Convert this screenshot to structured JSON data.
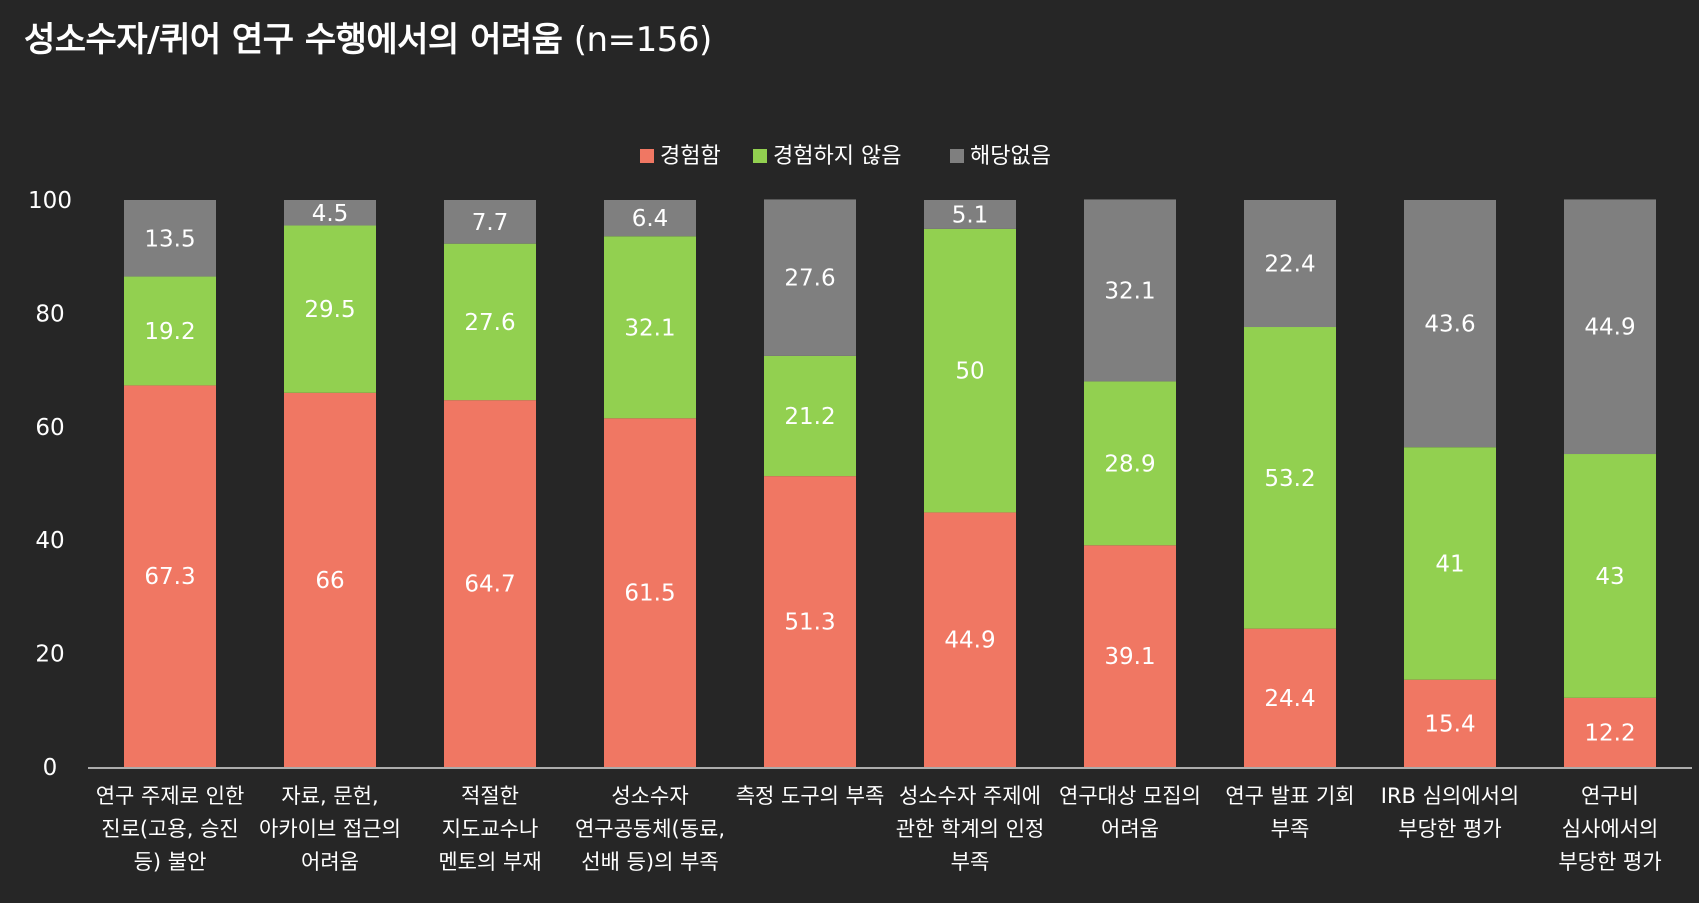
{
  "title_main": "성소수자/퀴어 연구 수행에서의 어려움",
  "title_sub": "(n=156)",
  "chart_data": {
    "type": "bar",
    "stacked": true,
    "title": "성소수자/퀴어 연구 수행에서의 어려움 (n=156)",
    "ylim": [
      0,
      100
    ],
    "yticks": [
      "0",
      "20",
      "40",
      "60",
      "80",
      "100"
    ],
    "categories": [
      [
        "연구 주제로 인한",
        "진로(고용, 승진",
        "등) 불안"
      ],
      [
        "자료, 문헌,",
        "아카이브 접근의",
        "어려움"
      ],
      [
        "적절한",
        "지도교수나",
        "멘토의 부재"
      ],
      [
        "성소수자",
        "연구공동체(동료,",
        "선배 등)의 부족"
      ],
      [
        "측정 도구의 부족"
      ],
      [
        "성소수자 주제에",
        "관한 학계의 인정",
        "부족"
      ],
      [
        "연구대상 모집의",
        "어려움"
      ],
      [
        "연구 발표 기회",
        "부족"
      ],
      [
        "IRB 심의에서의",
        "부당한 평가"
      ],
      [
        "연구비",
        "심사에서의",
        "부당한 평가"
      ]
    ],
    "series": [
      {
        "name": "경험함",
        "color": "#f07763",
        "values": [
          67.3,
          66,
          64.7,
          61.5,
          51.3,
          44.9,
          39.1,
          24.4,
          15.4,
          12.2
        ]
      },
      {
        "name": "경험하지 않음",
        "color": "#92d050",
        "values": [
          19.2,
          29.5,
          27.6,
          32.1,
          21.2,
          50,
          28.9,
          53.2,
          41,
          43
        ]
      },
      {
        "name": "해당없음",
        "color": "#7f7f7f",
        "values": [
          13.5,
          4.5,
          7.7,
          6.4,
          27.6,
          5.1,
          32.1,
          22.4,
          43.6,
          44.9
        ]
      }
    ],
    "legend_position": "top-center",
    "grid": false
  }
}
